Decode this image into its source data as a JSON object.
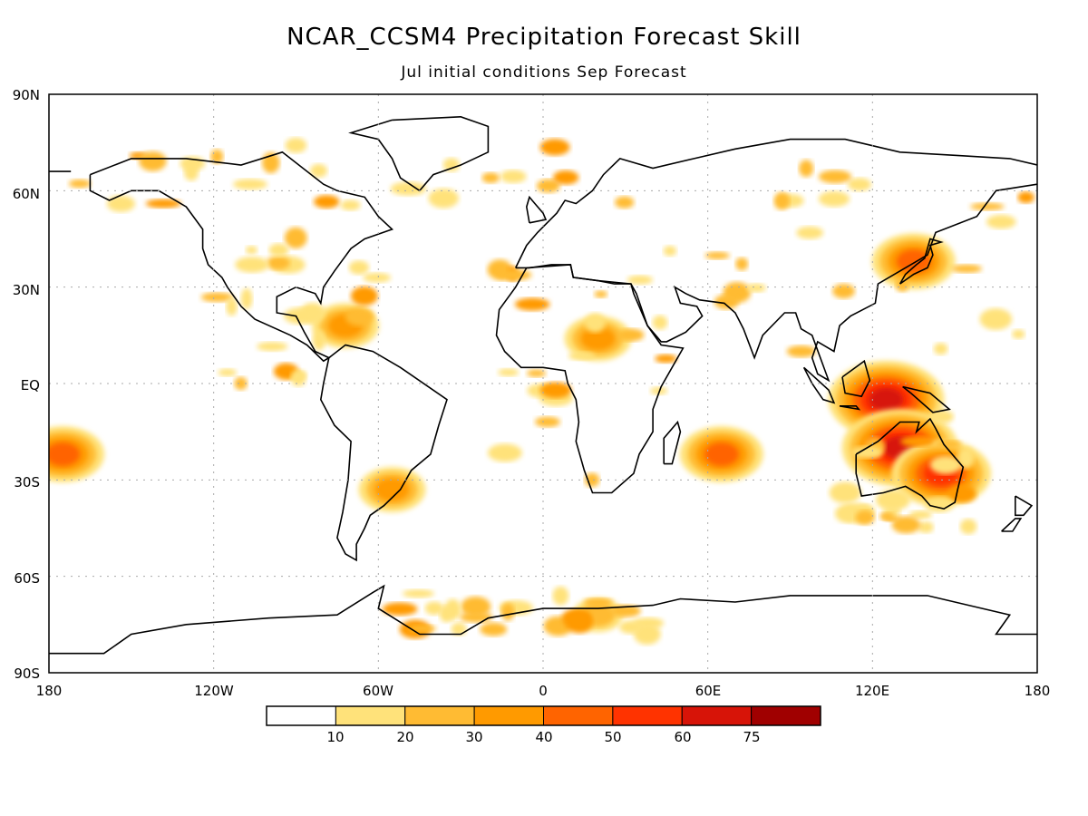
{
  "map": {
    "title": "NCAR_CCSM4 Precipitation Forecast Skill",
    "subtitle": "Jul initial conditions   Sep Forecast",
    "lat_labels": [
      "90N",
      "60N",
      "30N",
      "EQ",
      "30S",
      "60S",
      "90S"
    ],
    "lon_labels": [
      "180",
      "120W",
      "60W",
      "0",
      "60E",
      "120E",
      "180"
    ],
    "colorbar": {
      "tick_labels": [
        "10",
        "20",
        "30",
        "40",
        "50",
        "60",
        "75"
      ],
      "colors": [
        "#ffffff",
        "#ffe27a",
        "#ffbb33",
        "#ff9a00",
        "#ff6400",
        "#ff3300",
        "#d71408",
        "#a00000"
      ]
    },
    "coastline_color": "#000000",
    "grid_color": "#aaaaaa",
    "skill_regions": [
      {
        "name": "Maritime Continent / Indonesia",
        "lon": 125,
        "lat": -5,
        "level": 6
      },
      {
        "name": "Northern Australia",
        "lon": 130,
        "lat": -20,
        "level": 6
      },
      {
        "name": "Eastern Australia",
        "lon": 145,
        "lat": -28,
        "level": 5
      },
      {
        "name": "Central Pacific 20S",
        "lon": -175,
        "lat": -22,
        "level": 4
      },
      {
        "name": "Southwest Indian Ocean",
        "lon": 65,
        "lat": -22,
        "level": 4
      },
      {
        "name": "Sahel / Central Africa",
        "lon": 20,
        "lat": 14,
        "level": 3
      },
      {
        "name": "Caribbean",
        "lon": -72,
        "lat": 18,
        "level": 3
      },
      {
        "name": "Southeastern South America",
        "lon": -55,
        "lat": -33,
        "level": 3
      },
      {
        "name": "Southern Ocean / Antarctica 0E",
        "lon": 20,
        "lat": -72,
        "level": 2
      },
      {
        "name": "Eastern China / Japan",
        "lon": 135,
        "lat": 38,
        "level": 4
      }
    ]
  }
}
